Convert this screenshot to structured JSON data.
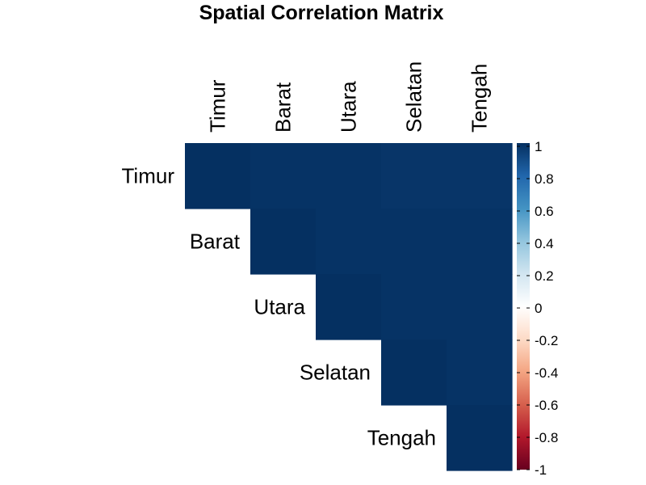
{
  "chart_data": {
    "type": "heatmap",
    "title": "Spatial Correlation Matrix",
    "variables": [
      "Timur",
      "Barat",
      "Utara",
      "Selatan",
      "Tengah"
    ],
    "layout": "upper-triangle",
    "matrix": [
      [
        1.0,
        0.99,
        0.99,
        0.98,
        0.98
      ],
      [
        0.99,
        1.0,
        0.99,
        0.99,
        0.99
      ],
      [
        0.99,
        0.99,
        1.0,
        0.99,
        0.99
      ],
      [
        0.98,
        0.99,
        0.99,
        1.0,
        0.99
      ],
      [
        0.98,
        0.99,
        0.99,
        0.99,
        1.0
      ]
    ],
    "colorbar": {
      "range": [
        -1,
        1
      ],
      "ticks": [
        "-1",
        "-0.8",
        "-0.6",
        "-0.4",
        "-0.2",
        "0",
        "0.2",
        "0.4",
        "0.6",
        "0.8",
        "1"
      ],
      "colors": [
        "#67001F",
        "#B2182B",
        "#D6604D",
        "#F4A582",
        "#FDDBC7",
        "#FFFFFF",
        "#D1E5F0",
        "#92C5DE",
        "#4393C3",
        "#2166AC",
        "#053061"
      ]
    },
    "grid": false,
    "legend": "right"
  }
}
